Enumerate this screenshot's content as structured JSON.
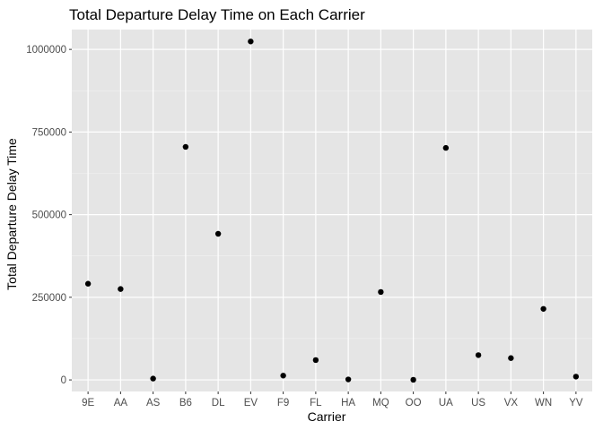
{
  "chart_data": {
    "type": "scatter",
    "title": "Total Departure Delay Time on Each Carrier",
    "xlabel": "Carrier",
    "ylabel": "Total Departure Delay Time",
    "categories": [
      "9E",
      "AA",
      "AS",
      "B6",
      "DL",
      "EV",
      "F9",
      "FL",
      "HA",
      "MQ",
      "OO",
      "UA",
      "US",
      "VX",
      "WN",
      "YV"
    ],
    "values": [
      291000,
      275000,
      4000,
      705000,
      442000,
      1024000,
      13000,
      60000,
      1500,
      266000,
      400,
      702000,
      75000,
      66000,
      215000,
      10000
    ],
    "ylim": [
      -35000,
      1060000
    ],
    "yticks": [
      0,
      250000,
      500000,
      750000,
      1000000
    ],
    "ytick_labels": [
      "0",
      "250000",
      "500000",
      "750000",
      "1000000"
    ],
    "grid": true,
    "colors": {
      "panel_background": "#e5e5e5",
      "major_grid": "#ffffff",
      "minor_grid": "#f2f2f2",
      "point": "#000000"
    }
  }
}
